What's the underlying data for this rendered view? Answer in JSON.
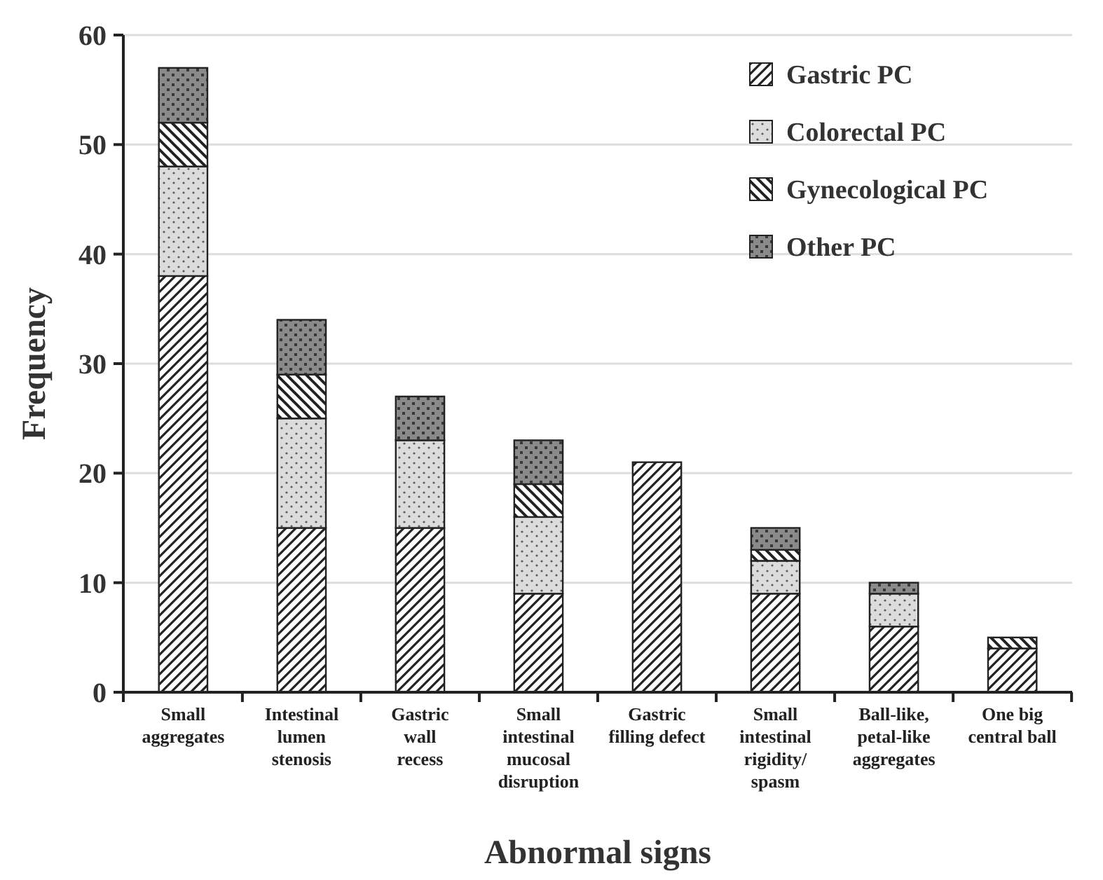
{
  "chart_data": {
    "type": "bar",
    "stacked": true,
    "xlabel": "Abnormal signs",
    "ylabel": "Frequency",
    "categories": [
      "Small\naggregates",
      "Intestinal\nlumen\nstenosis",
      "Gastric\nwall\nrecess",
      "Small\nintestinal\nmucosal\ndisruption",
      "Gastric\nfilling defect",
      "Small\nintestinal\nrigidity/\nspasm",
      "Ball-like,\npetal-like\naggregates",
      "One big\ncentral ball"
    ],
    "series": [
      {
        "name": "Gastric PC",
        "color": "#222222",
        "values": [
          38,
          15,
          15,
          9,
          21,
          9,
          6,
          4
        ]
      },
      {
        "name": "Colorectal PC",
        "color": "#222222",
        "values": [
          10,
          10,
          8,
          7,
          0,
          3,
          3,
          0
        ]
      },
      {
        "name": "Gynecological PC",
        "color": "#222222",
        "values": [
          4,
          4,
          0,
          3,
          0,
          1,
          0,
          1
        ]
      },
      {
        "name": "Other PC",
        "color": "#222222",
        "values": [
          5,
          5,
          4,
          4,
          0,
          2,
          1,
          0
        ]
      }
    ],
    "ylim": [
      0,
      60
    ],
    "yticks": [
      0,
      10,
      20,
      30,
      40,
      50,
      60
    ],
    "grid": "y",
    "legend": "top right"
  }
}
